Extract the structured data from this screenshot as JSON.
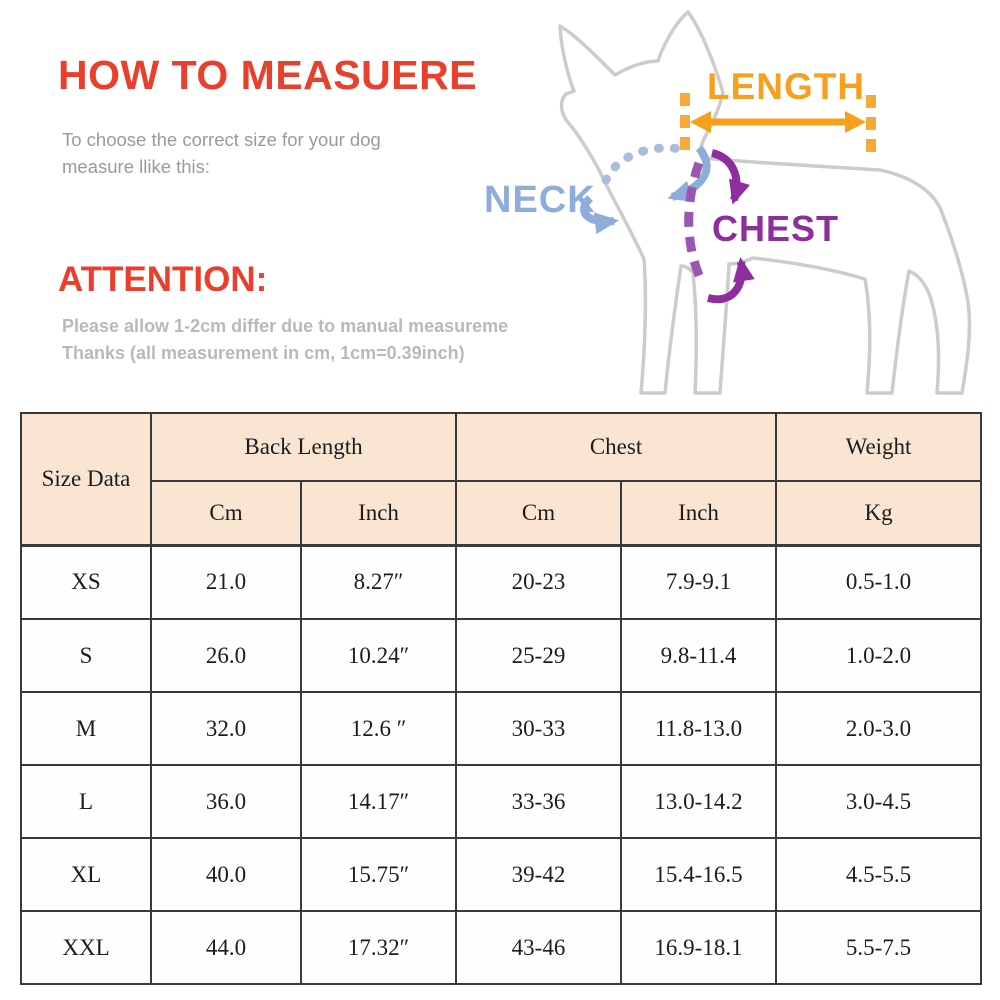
{
  "header": {
    "title": "HOW TO MEASUERE",
    "subtitle_line1": "To choose the correct size for your dog",
    "subtitle_line2": "measure llike this:"
  },
  "attention": {
    "title": "ATTENTION:",
    "line1": "Please allow 1-2cm differ due to manual measureme",
    "line2": "Thanks (all measurement in cm, 1cm=0.39inch)"
  },
  "diagram": {
    "length_label": "LENGTH",
    "neck_label": "NECK",
    "chest_label": "CHEST",
    "illustration": "chihuahua-outline-drawing"
  },
  "colors": {
    "heading_red": "#e8402c",
    "subtitle_gray": "#9a9a9a",
    "attention_gray": "#b9b9b9",
    "length_orange": "#f5a11e",
    "neck_blue": "#8fadda",
    "chest_purple": "#8e2d9e",
    "dog_outline_gray": "#cccccc",
    "table_header_bg": "#fae5d2",
    "table_border": "#3a3a3a"
  },
  "size_table": {
    "corner_label": "Size Data",
    "col_groups": [
      {
        "label": "Back Length",
        "span": 2
      },
      {
        "label": "Chest",
        "span": 2
      },
      {
        "label": "Weight",
        "span": 1
      }
    ],
    "sub_headers": [
      "Cm",
      "Inch",
      "Cm",
      "Inch",
      "Kg"
    ],
    "rows": [
      {
        "size": "XS",
        "back_cm": "21.0",
        "back_inch": "8.27″",
        "chest_cm": "20-23",
        "chest_inch": "7.9-9.1",
        "weight_kg": "0.5-1.0"
      },
      {
        "size": "S",
        "back_cm": "26.0",
        "back_inch": "10.24″",
        "chest_cm": "25-29",
        "chest_inch": "9.8-11.4",
        "weight_kg": "1.0-2.0"
      },
      {
        "size": "M",
        "back_cm": "32.0",
        "back_inch": "12.6 ″",
        "chest_cm": "30-33",
        "chest_inch": "11.8-13.0",
        "weight_kg": "2.0-3.0"
      },
      {
        "size": "L",
        "back_cm": "36.0",
        "back_inch": "14.17″",
        "chest_cm": "33-36",
        "chest_inch": "13.0-14.2",
        "weight_kg": "3.0-4.5"
      },
      {
        "size": "XL",
        "back_cm": "40.0",
        "back_inch": "15.75″",
        "chest_cm": "39-42",
        "chest_inch": "15.4-16.5",
        "weight_kg": "4.5-5.5"
      },
      {
        "size": "XXL",
        "back_cm": "44.0",
        "back_inch": "17.32″",
        "chest_cm": "43-46",
        "chest_inch": "16.9-18.1",
        "weight_kg": "5.5-7.5"
      }
    ]
  }
}
